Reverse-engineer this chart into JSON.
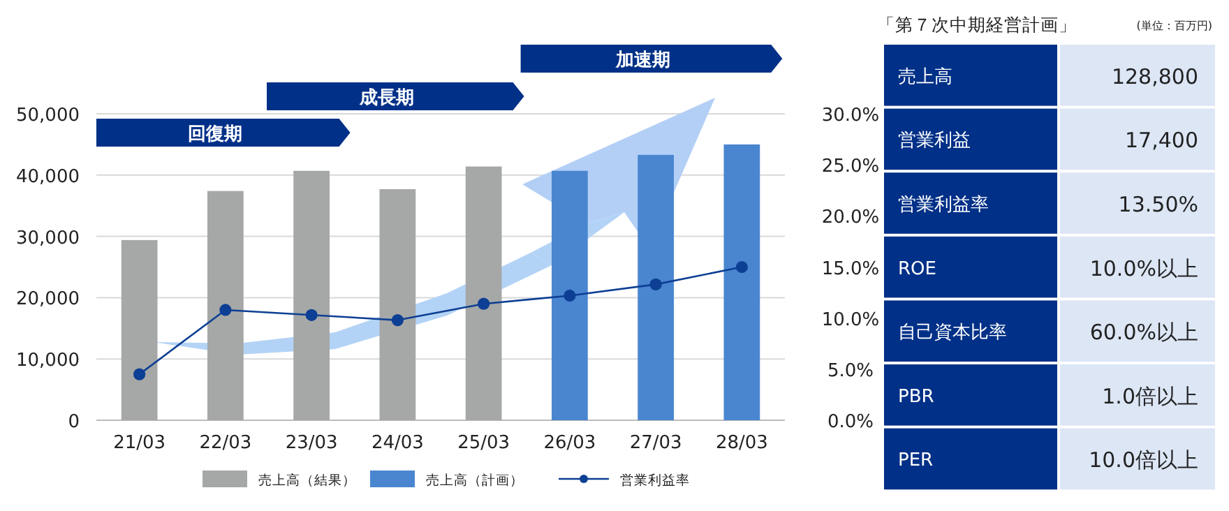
{
  "chart_data": [
    {
      "type": "bar",
      "categories": [
        "21/03",
        "22/03",
        "23/03",
        "24/03",
        "25/03",
        "26/03",
        "27/03",
        "28/03"
      ],
      "series": [
        {
          "name": "売上高（結果）",
          "color": "#a6a8a7",
          "values": [
            29400,
            37400,
            40700,
            37700,
            41400,
            null,
            null,
            null
          ]
        },
        {
          "name": "売上高（計画）",
          "color": "#4a86d0",
          "values": [
            null,
            null,
            null,
            null,
            null,
            40700,
            43300,
            45000
          ]
        },
        {
          "name": "営業利益率",
          "type": "line",
          "axis": "y2",
          "color": "#0d3f94",
          "marker": "circle",
          "values": [
            4.5,
            10.8,
            10.3,
            9.8,
            11.4,
            12.2,
            13.3,
            15.0
          ]
        }
      ],
      "ylim": [
        0,
        50000
      ],
      "yticks": [
        0,
        {
          "value": 10000,
          "label": "10,000"
        },
        {
          "value": 20000,
          "label": "20,000"
        },
        {
          "value": 30000,
          "label": "30,000"
        },
        {
          "value": 40000,
          "label": "40,000"
        },
        {
          "value": 50000,
          "label": "50,000"
        }
      ],
      "y2lim": [
        0,
        30
      ],
      "y2ticks": [
        {
          "value": 0,
          "label": "0.0%"
        },
        {
          "value": 5,
          "label": "5.0%"
        },
        {
          "value": 10,
          "label": "10.0%"
        },
        {
          "value": 15,
          "label": "15.0%"
        },
        {
          "value": 20,
          "label": "20.0%"
        },
        {
          "value": 25,
          "label": "25.0%"
        },
        {
          "value": 30,
          "label": "30.0%"
        }
      ],
      "grid": "y",
      "legend": "bottom",
      "annotations": [
        "回復期",
        "成長期",
        "加速期"
      ]
    },
    {
      "type": "other",
      "title": "「第７次中期経営計画」",
      "subtitle": "(単位：百万円)",
      "categories": [
        "売上高",
        "営業利益",
        "営業利益率",
        "ROE",
        "自己資本比率",
        "PBR",
        "PER"
      ],
      "value_labels": [
        "128,800",
        "17,400",
        "13.50%",
        "10.0%以上",
        "60.0%以上",
        "1.0倍以上",
        "10.0倍以上"
      ]
    }
  ]
}
